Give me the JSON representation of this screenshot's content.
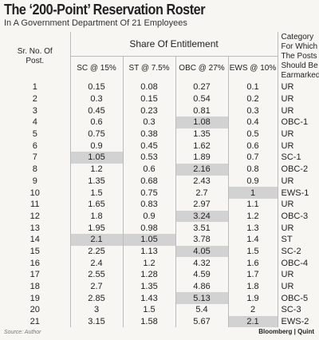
{
  "header": {
    "title": "The ‘200-Point’ Reservation Roster",
    "subtitle": "In A Government Department Of 21 Employees"
  },
  "table": {
    "group_header": "Share Of Entitlement",
    "columns": [
      "Sr. No. Of Post.",
      "SC @ 15%",
      "ST @ 7.5%",
      "OBC @ 27%",
      "EWS @ 10%",
      "Category For Which The Posts Should Be Earmarked"
    ],
    "rows": [
      [
        {
          "text": 1
        },
        {
          "text": 0.15
        },
        {
          "text": 0.08
        },
        {
          "text": 0.27
        },
        {
          "text": 0.1
        },
        {
          "text": "UR"
        }
      ],
      [
        {
          "text": 2
        },
        {
          "text": 0.3
        },
        {
          "text": 0.15
        },
        {
          "text": 0.54
        },
        {
          "text": 0.2
        },
        {
          "text": "UR"
        }
      ],
      [
        {
          "text": 3
        },
        {
          "text": 0.45
        },
        {
          "text": 0.23
        },
        {
          "text": 0.81
        },
        {
          "text": 0.3
        },
        {
          "text": "UR"
        }
      ],
      [
        {
          "text": 4
        },
        {
          "text": 0.6
        },
        {
          "text": 0.3
        },
        {
          "text": 1.08,
          "shaded": true
        },
        {
          "text": 0.4
        },
        {
          "text": "OBC-1"
        }
      ],
      [
        {
          "text": 5
        },
        {
          "text": 0.75
        },
        {
          "text": 0.38
        },
        {
          "text": 1.35
        },
        {
          "text": 0.5
        },
        {
          "text": "UR"
        }
      ],
      [
        {
          "text": 6
        },
        {
          "text": 0.9
        },
        {
          "text": 0.45
        },
        {
          "text": 1.62
        },
        {
          "text": 0.6
        },
        {
          "text": "UR"
        }
      ],
      [
        {
          "text": 7
        },
        {
          "text": 1.05,
          "shaded": true
        },
        {
          "text": 0.53
        },
        {
          "text": 1.89
        },
        {
          "text": 0.7
        },
        {
          "text": "SC-1"
        }
      ],
      [
        {
          "text": 8
        },
        {
          "text": 1.2
        },
        {
          "text": 0.6
        },
        {
          "text": 2.16,
          "shaded": true
        },
        {
          "text": 0.8
        },
        {
          "text": "OBC-2"
        }
      ],
      [
        {
          "text": 9
        },
        {
          "text": 1.35
        },
        {
          "text": 0.68
        },
        {
          "text": 2.43
        },
        {
          "text": 0.9
        },
        {
          "text": "UR"
        }
      ],
      [
        {
          "text": 10
        },
        {
          "text": 1.5
        },
        {
          "text": 0.75
        },
        {
          "text": 2.7
        },
        {
          "text": 1,
          "shaded": true
        },
        {
          "text": "EWS-1"
        }
      ],
      [
        {
          "text": 11
        },
        {
          "text": 1.65
        },
        {
          "text": 0.83
        },
        {
          "text": 2.97
        },
        {
          "text": 1.1
        },
        {
          "text": "UR"
        }
      ],
      [
        {
          "text": 12
        },
        {
          "text": 1.8
        },
        {
          "text": 0.9
        },
        {
          "text": 3.24,
          "shaded": true
        },
        {
          "text": 1.2
        },
        {
          "text": "OBC-3"
        }
      ],
      [
        {
          "text": 13
        },
        {
          "text": 1.95
        },
        {
          "text": 0.98
        },
        {
          "text": 3.51
        },
        {
          "text": 1.3
        },
        {
          "text": "UR"
        }
      ],
      [
        {
          "text": 14
        },
        {
          "text": 2.1,
          "shaded": true
        },
        {
          "text": 1.05,
          "shaded": true
        },
        {
          "text": 3.78
        },
        {
          "text": 1.4
        },
        {
          "text": "ST"
        }
      ],
      [
        {
          "text": 15
        },
        {
          "text": 2.25
        },
        {
          "text": 1.13
        },
        {
          "text": 4.05,
          "shaded": true
        },
        {
          "text": 1.5
        },
        {
          "text": "SC-2"
        }
      ],
      [
        {
          "text": 16
        },
        {
          "text": 2.4
        },
        {
          "text": 1.2
        },
        {
          "text": 4.32
        },
        {
          "text": 1.6
        },
        {
          "text": "OBC-4"
        }
      ],
      [
        {
          "text": 17
        },
        {
          "text": 2.55
        },
        {
          "text": 1.28
        },
        {
          "text": 4.59
        },
        {
          "text": 1.7
        },
        {
          "text": "UR"
        }
      ],
      [
        {
          "text": 18
        },
        {
          "text": 2.7
        },
        {
          "text": 1.35
        },
        {
          "text": 4.86
        },
        {
          "text": 1.8
        },
        {
          "text": "UR"
        }
      ],
      [
        {
          "text": 19
        },
        {
          "text": 2.85
        },
        {
          "text": 1.43
        },
        {
          "text": 5.13,
          "shaded": true
        },
        {
          "text": 1.9
        },
        {
          "text": "OBC-5"
        }
      ],
      [
        {
          "text": 20
        },
        {
          "text": 3
        },
        {
          "text": 1.5
        },
        {
          "text": 5.4
        },
        {
          "text": 2
        },
        {
          "text": "SC-3"
        }
      ],
      [
        {
          "text": 21
        },
        {
          "text": 3.15
        },
        {
          "text": 1.58
        },
        {
          "text": 5.67
        },
        {
          "text": 2.1,
          "shaded": true
        },
        {
          "text": "EWS-2"
        }
      ]
    ]
  },
  "footer": {
    "source": "Source: Author",
    "brand": "Bloomberg | Quint"
  }
}
